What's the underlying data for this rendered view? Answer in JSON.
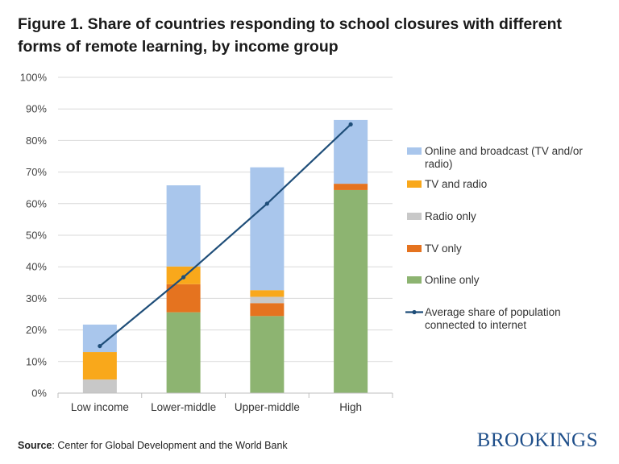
{
  "title_line1": "Figure 1. Share of countries responding to school closures with different",
  "title_line2": "forms of remote learning, by income group",
  "source_label": "Source",
  "source_text": ": Center for Global Development and the World Bank",
  "brand": "BROOKINGS",
  "colors": {
    "online_broadcast": "#a9c6ec",
    "tv_radio": "#f9a81b",
    "radio_only": "#c8c8c8",
    "tv_only": "#e5731f",
    "online_only": "#8db471",
    "line": "#1f4e79",
    "grid": "#d9d9d9"
  },
  "chart_data": {
    "type": "bar",
    "stacked": true,
    "categories": [
      "Low income",
      "Lower-middle",
      "Upper-middle",
      "High"
    ],
    "ylim": [
      0,
      100
    ],
    "yticks": [
      "0%",
      "10%",
      "20%",
      "30%",
      "40%",
      "50%",
      "60%",
      "70%",
      "80%",
      "90%",
      "100%"
    ],
    "grid": true,
    "legend_position": "right",
    "series": [
      {
        "name": "Online only",
        "color_key": "online_only",
        "values": [
          0,
          25.6,
          24.4,
          64.3
        ]
      },
      {
        "name": "TV only",
        "color_key": "tv_only",
        "values": [
          0,
          8.9,
          4.1,
          2.0
        ]
      },
      {
        "name": "Radio only",
        "color_key": "radio_only",
        "values": [
          4.3,
          0,
          2.0,
          0
        ]
      },
      {
        "name": "TV and radio",
        "color_key": "tv_radio",
        "values": [
          8.7,
          5.6,
          2.1,
          0
        ]
      },
      {
        "name": "Online and broadcast (TV and/or radio)",
        "color_key": "online_broadcast",
        "values": [
          8.7,
          25.7,
          38.9,
          20.2
        ]
      }
    ],
    "line_series": {
      "name": "Average share of population connected to internet",
      "color_key": "line",
      "values": [
        14.9,
        36.7,
        60.0,
        85.1
      ]
    },
    "legend": [
      {
        "lines": [
          "Online and broadcast (TV and/or",
          "radio)"
        ],
        "color_key": "online_broadcast",
        "kind": "box"
      },
      {
        "lines": [
          "TV and radio"
        ],
        "color_key": "tv_radio",
        "kind": "box"
      },
      {
        "lines": [
          "Radio only"
        ],
        "color_key": "radio_only",
        "kind": "box"
      },
      {
        "lines": [
          "TV only"
        ],
        "color_key": "tv_only",
        "kind": "box"
      },
      {
        "lines": [
          "Online only"
        ],
        "color_key": "online_only",
        "kind": "box"
      },
      {
        "lines": [
          "Average share of population",
          "connected to internet"
        ],
        "color_key": "line",
        "kind": "line"
      }
    ]
  }
}
